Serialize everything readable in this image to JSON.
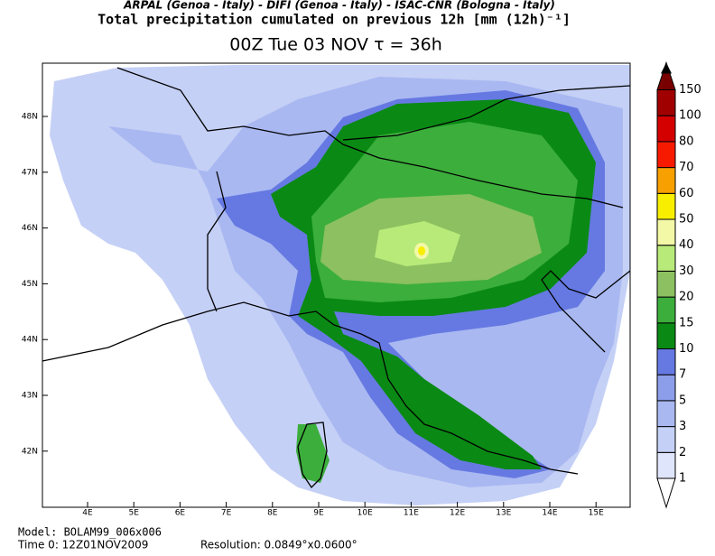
{
  "header": {
    "credits": "ARPAL (Genoa - Italy)  -  DIFI (Genoa - Italy)  -  ISAC-CNR (Bologna - Italy)",
    "title": "Total precipitation cumulated on previous 12h [mm (12h)⁻¹]",
    "subtitle": "00Z Tue 03 NOV   τ = 36h"
  },
  "map": {
    "lon_labels": [
      "4E",
      "5E",
      "6E",
      "7E",
      "8E",
      "9E",
      "10E",
      "11E",
      "12E",
      "13E",
      "14E",
      "15E"
    ],
    "lat_labels": [
      "48N",
      "47N",
      "46N",
      "45N",
      "44N",
      "43N",
      "42N"
    ]
  },
  "colorbar": {
    "levels": [
      {
        "value": 1,
        "color": "#dfe5fa"
      },
      {
        "value": 2,
        "color": "#c5d0f6"
      },
      {
        "value": 3,
        "color": "#a9b8f1"
      },
      {
        "value": 5,
        "color": "#8c9eea"
      },
      {
        "value": 7,
        "color": "#6679e2"
      },
      {
        "value": 10,
        "color": "#0a8a14"
      },
      {
        "value": 15,
        "color": "#3cae3c"
      },
      {
        "value": 20,
        "color": "#8cc060"
      },
      {
        "value": 30,
        "color": "#b8ea7a"
      },
      {
        "value": 40,
        "color": "#f2f8a6"
      },
      {
        "value": 50,
        "color": "#f8ee00"
      },
      {
        "value": 60,
        "color": "#f8a000"
      },
      {
        "value": 70,
        "color": "#f81a00"
      },
      {
        "value": 80,
        "color": "#d40000"
      },
      {
        "value": 100,
        "color": "#a00000"
      },
      {
        "value": 150,
        "color": "#780000"
      }
    ],
    "max_color": "#000000"
  },
  "footer": {
    "model": "Model: BOLAM99_006x006",
    "time": "Time 0: 12Z01NOV2009",
    "resolution": "Resolution: 0.0849°x0.0600°"
  }
}
